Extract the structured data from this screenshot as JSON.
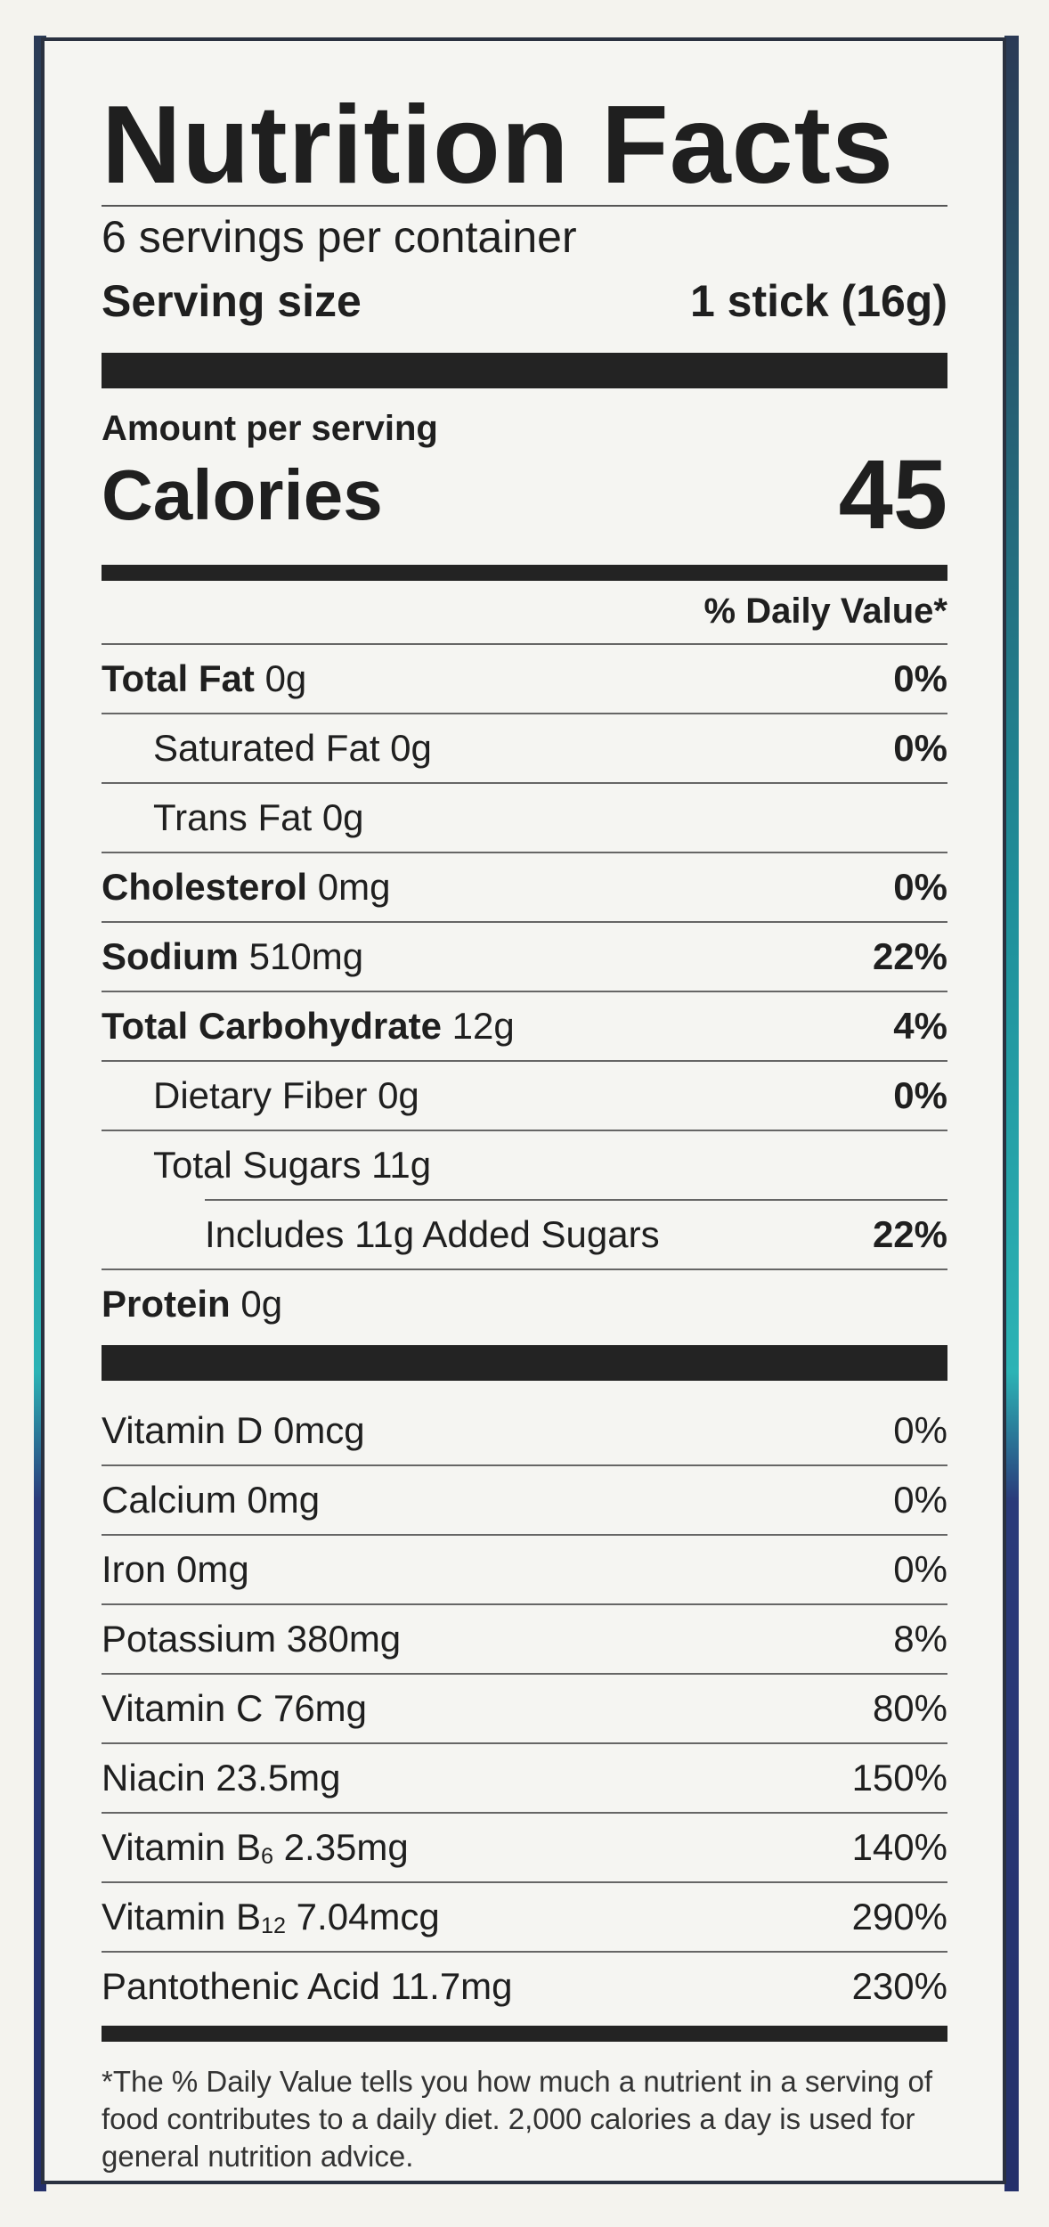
{
  "label": {
    "title": "Nutrition Facts",
    "servings_per_container": "6 servings per container",
    "serving_size_label": "Serving size",
    "serving_size_value": "1 stick (16g)",
    "amount_per_serving": "Amount per serving",
    "calories_label": "Calories",
    "calories_value": "45",
    "daily_value_header": "% Daily Value*",
    "nutrients": [
      {
        "name": "Total Fat",
        "amount": "0g",
        "dv": "0%"
      },
      {
        "name": "Saturated Fat",
        "amount": "0g",
        "dv": "0%"
      },
      {
        "name": "Trans Fat",
        "amount": "0g",
        "dv": ""
      },
      {
        "name": "Cholesterol",
        "amount": "0mg",
        "dv": "0%"
      },
      {
        "name": "Sodium",
        "amount": "510mg",
        "dv": "22%"
      },
      {
        "name": "Total Carbohydrate",
        "amount": "12g",
        "dv": "4%"
      },
      {
        "name": "Dietary Fiber",
        "amount": "0g",
        "dv": "0%"
      },
      {
        "name": "Total Sugars",
        "amount": "11g",
        "dv": ""
      },
      {
        "name": "Includes 11g Added Sugars",
        "amount": "",
        "dv": "22%"
      },
      {
        "name": "Protein",
        "amount": "0g",
        "dv": ""
      }
    ],
    "vitamins": [
      {
        "name": "Vitamin D 0mcg",
        "dv": "0%"
      },
      {
        "name": "Calcium 0mg",
        "dv": "0%"
      },
      {
        "name": "Iron 0mg",
        "dv": "0%"
      },
      {
        "name": "Potassium 380mg",
        "dv": "8%"
      },
      {
        "name": "Vitamin C 76mg",
        "dv": "80%"
      },
      {
        "name": "Niacin 23.5mg",
        "dv": "150%"
      },
      {
        "name": "Vitamin B",
        "sub": "6",
        "rest": " 2.35mg",
        "dv": "140%"
      },
      {
        "name": "Vitamin B",
        "sub": "12",
        "rest": " 7.04mcg",
        "dv": "290%"
      },
      {
        "name": "Pantothenic Acid 11.7mg",
        "dv": "230%"
      }
    ],
    "footnote": "*The % Daily Value tells you how much a nutrient in a serving of food contributes to a daily diet. 2,000 calories a day is used for general nutrition advice."
  }
}
